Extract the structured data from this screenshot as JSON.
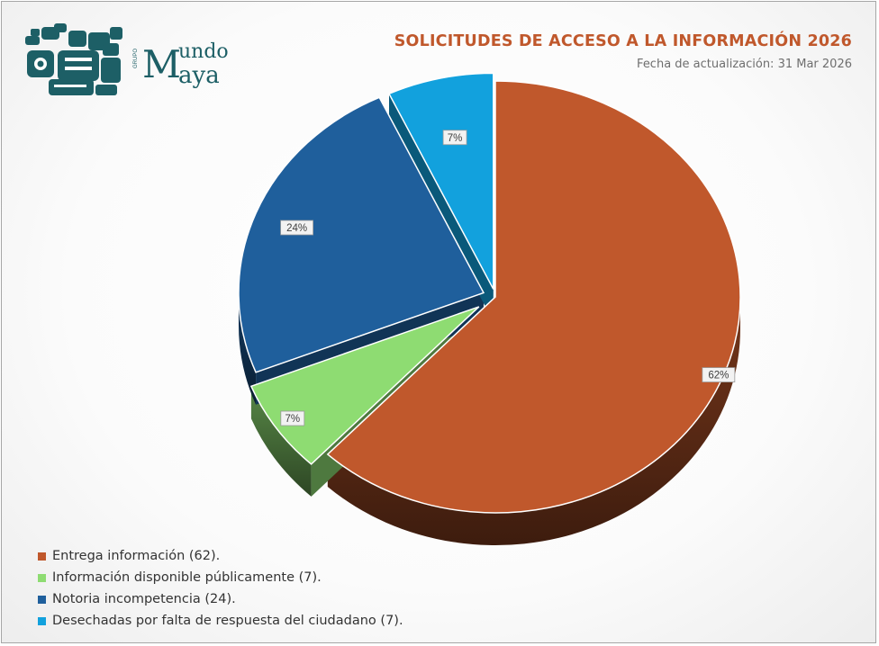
{
  "header": {
    "title": "SOLICITUDES DE ACCESO A LA INFORMACIÓN 2026",
    "subtitle": "Fecha de actualización: 31 Mar 2026"
  },
  "logo": {
    "text_top": "Mundo",
    "text_bottom": "Maya",
    "brand_prefix": "GRUPO",
    "color": "#1d5f66"
  },
  "chart_data": {
    "type": "pie",
    "title": "SOLICITUDES DE ACCESO A LA INFORMACIÓN 2026",
    "legend_position": "bottom-left",
    "slices": [
      {
        "name": "Entrega información (62).",
        "value": 62,
        "label": "62%",
        "color": "#c0582c",
        "exploded": false
      },
      {
        "name": "Información disponible públicamente (7).",
        "value": 7,
        "label": "7%",
        "color": "#8edc72",
        "exploded": true
      },
      {
        "name": "Notoria incompetencia (24).",
        "value": 24,
        "label": "24%",
        "color": "#1f5f9c",
        "exploded": true
      },
      {
        "name": "Desechadas por falta de respuesta del ciudadano (7).",
        "value": 7,
        "label": "7%",
        "color": "#12a1dd",
        "exploded": true
      }
    ]
  }
}
